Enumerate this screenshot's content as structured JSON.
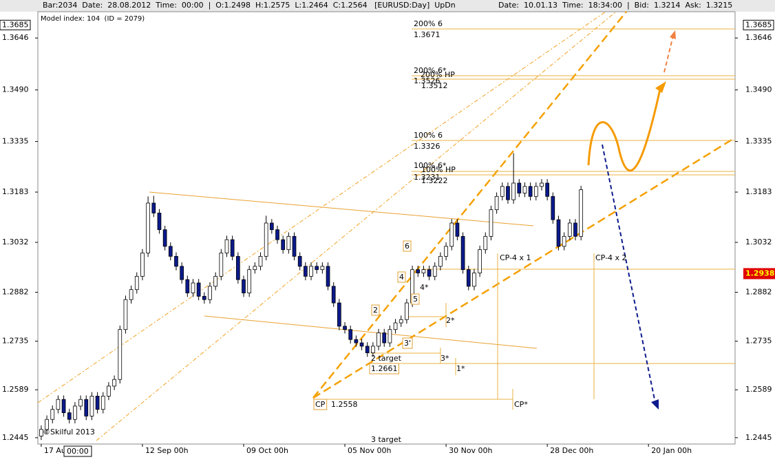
{
  "header": {
    "left": "Bar:2034  Date:  28.08.2012  Time:  00:00  |  O:1.2498  H:1.2575  L:1.2464  C:1.2564   [EURUSD:Day]  UpDn",
    "right": "Date:  10.01.13  Time:  18:34:00  |  Bid:  1.3214  Ask:  1.3215"
  },
  "model_index": "Model index: 104  (ID = 2079)",
  "copyright": "©Skilful 2013",
  "chart_data": {
    "type": "candlestick",
    "open": [
      1.245,
      1.247,
      1.25,
      1.253,
      1.256,
      1.252,
      1.25,
      1.254,
      1.256,
      1.251,
      1.257,
      1.253,
      1.257,
      1.26,
      1.262,
      1.277,
      1.286,
      1.289,
      1.293,
      1.3,
      1.315,
      1.312,
      1.307,
      1.302,
      1.299,
      1.296,
      1.292,
      1.288,
      1.291,
      1.287,
      1.286,
      1.29,
      1.293,
      1.3,
      1.304,
      1.299,
      1.292,
      1.288,
      1.295,
      1.296,
      1.299,
      1.309,
      1.307,
      1.304,
      1.301,
      1.305,
      1.299,
      1.296,
      1.293,
      1.296,
      1.295,
      1.296,
      1.29,
      1.285,
      1.278,
      1.277,
      1.274,
      1.273,
      1.272,
      1.27,
      1.272,
      1.276,
      1.273,
      1.277,
      1.279,
      1.28,
      1.285,
      1.295,
      1.294,
      1.295,
      1.293,
      1.296,
      1.299,
      1.302,
      1.309,
      1.305,
      1.295,
      1.29,
      1.294,
      1.301,
      1.305,
      1.313,
      1.317,
      1.32,
      1.316,
      1.321,
      1.318,
      1.32,
      1.317,
      1.32,
      1.321,
      1.317,
      1.31,
      1.302,
      1.305,
      1.309,
      1.305
    ],
    "high": [
      1.2482,
      1.2512,
      1.2542,
      1.2572,
      1.2572,
      1.2532,
      1.2552,
      1.2572,
      1.2572,
      1.2582,
      1.2582,
      1.2582,
      1.2612,
      1.2632,
      1.2782,
      1.2872,
      1.2902,
      1.2942,
      1.3012,
      1.317,
      1.3172,
      1.3132,
      1.3082,
      1.3032,
      1.3002,
      1.2972,
      1.2932,
      1.2922,
      1.2922,
      1.2882,
      1.2912,
      1.2942,
      1.3012,
      1.3052,
      1.3052,
      1.3002,
      1.2932,
      1.2962,
      1.2972,
      1.3002,
      1.3112,
      1.3102,
      1.3082,
      1.3052,
      1.3062,
      1.3062,
      1.3002,
      1.2972,
      1.2972,
      1.2972,
      1.2972,
      1.2972,
      1.2912,
      1.2862,
      1.2792,
      1.2782,
      1.2752,
      1.2742,
      1.2732,
      1.2732,
      1.2772,
      1.2772,
      1.2782,
      1.2802,
      1.2812,
      1.2862,
      1.2962,
      1.2962,
      1.2962,
      1.2962,
      1.2972,
      1.3002,
      1.3032,
      1.3102,
      1.3102,
      1.3062,
      1.2962,
      1.2952,
      1.3022,
      1.3062,
      1.3142,
      1.3182,
      1.3212,
      1.3212,
      1.33,
      1.3222,
      1.3212,
      1.3212,
      1.3212,
      1.3222,
      1.3222,
      1.3182,
      1.3112,
      1.3062,
      1.3102,
      1.3102,
      1.3202
    ],
    "low": [
      1.2438,
      1.2458,
      1.2488,
      1.2518,
      1.2508,
      1.2488,
      1.2488,
      1.2528,
      1.2498,
      1.2498,
      1.2518,
      1.2518,
      1.2558,
      1.2588,
      1.2608,
      1.2758,
      1.2848,
      1.2878,
      1.2918,
      1.2988,
      1.3108,
      1.3058,
      1.3008,
      1.2978,
      1.2948,
      1.2908,
      1.2868,
      1.2868,
      1.2858,
      1.2848,
      1.2848,
      1.2888,
      1.2918,
      1.2988,
      1.2978,
      1.2908,
      1.2868,
      1.2868,
      1.2938,
      1.2948,
      1.2978,
      1.3058,
      1.3028,
      1.2998,
      1.2998,
      1.2978,
      1.2948,
      1.2918,
      1.2918,
      1.2938,
      1.2938,
      1.2888,
      1.2838,
      1.2768,
      1.2758,
      1.2728,
      1.2718,
      1.2708,
      1.2688,
      1.2688,
      1.2708,
      1.2718,
      1.2718,
      1.2758,
      1.2778,
      1.2788,
      1.2838,
      1.2928,
      1.2928,
      1.2918,
      1.2918,
      1.2948,
      1.2978,
      1.3008,
      1.3038,
      1.2938,
      1.2888,
      1.2888,
      1.2928,
      1.2998,
      1.3038,
      1.3118,
      1.3158,
      1.3148,
      1.3148,
      1.3168,
      1.3168,
      1.3158,
      1.3158,
      1.3188,
      1.3158,
      1.3088,
      1.3008,
      1.3008,
      1.3038,
      1.3038,
      1.3038
    ],
    "close": [
      1.247,
      1.25,
      1.253,
      1.256,
      1.252,
      1.25,
      1.254,
      1.256,
      1.251,
      1.257,
      1.253,
      1.257,
      1.26,
      1.262,
      1.277,
      1.286,
      1.289,
      1.293,
      1.3,
      1.315,
      1.312,
      1.307,
      1.302,
      1.299,
      1.296,
      1.292,
      1.288,
      1.291,
      1.287,
      1.286,
      1.29,
      1.293,
      1.3,
      1.304,
      1.299,
      1.292,
      1.288,
      1.295,
      1.296,
      1.299,
      1.309,
      1.307,
      1.304,
      1.301,
      1.305,
      1.299,
      1.296,
      1.293,
      1.296,
      1.295,
      1.296,
      1.29,
      1.285,
      1.278,
      1.277,
      1.274,
      1.273,
      1.272,
      1.27,
      1.272,
      1.276,
      1.273,
      1.277,
      1.279,
      1.28,
      1.285,
      1.295,
      1.294,
      1.295,
      1.293,
      1.296,
      1.299,
      1.302,
      1.309,
      1.305,
      1.295,
      1.29,
      1.294,
      1.301,
      1.305,
      1.313,
      1.317,
      1.32,
      1.316,
      1.321,
      1.318,
      1.32,
      1.317,
      1.32,
      1.321,
      1.317,
      1.31,
      1.302,
      1.305,
      1.309,
      1.305,
      1.319
    ],
    "up_color": "#ffffff",
    "down_color": "#0b1a8c",
    "ylim": [
      1.2426,
      1.3725
    ],
    "yticks": [
      1.2445,
      1.2589,
      1.2735,
      1.2882,
      1.3032,
      1.3183,
      1.3335,
      {
        "value": 1.349,
        "label": "1.3490"
      },
      1.3646
    ],
    "xlim": [
      -0.6,
      123.4
    ],
    "xticks": [
      {
        "value": 0,
        "label": "17 Aug"
      },
      {
        "value": 18,
        "label": "12 Sep 00h"
      },
      {
        "value": 36,
        "label": "09 Oct 00h"
      },
      {
        "value": 54,
        "label": "05 Nov 00h"
      },
      {
        "value": 72,
        "label": "30 Nov 00h"
      },
      {
        "value": 90,
        "label": "28 Dec 00h"
      },
      {
        "value": 108,
        "label": "20 Jan 00h"
      }
    ],
    "price_high": 1.3685,
    "current_price": 1.2938,
    "cursor_time": "00:00"
  },
  "annotations": [
    {
      "text": "200% 6"
    },
    {
      "text": "1.3671"
    },
    {
      "text": "200% 6*"
    },
    {
      "text": "200% HP"
    },
    {
      "text": "1.3526"
    },
    {
      "text": "1.3512"
    },
    {
      "text": "100% 6"
    },
    {
      "text": "1.3326"
    },
    {
      "text": "100% 6*"
    },
    {
      "text": "100% HP"
    },
    {
      "text": "1.3231"
    },
    {
      "text": "1.3222"
    },
    {
      "text": "CP-4 x 1"
    },
    {
      "text": "CP-4 x 2"
    },
    {
      "text": "CP"
    },
    {
      "text": "1.2558"
    },
    {
      "text": "CP*"
    },
    {
      "text": "2 target"
    },
    {
      "text": "1.2661"
    },
    {
      "text": "3 target"
    },
    {
      "text": "1*"
    },
    {
      "text": "3*"
    },
    {
      "text": "2*"
    },
    {
      "text": "3'"
    },
    {
      "text": "4*"
    },
    {
      "text": "2"
    },
    {
      "text": "4"
    },
    {
      "text": "5"
    },
    {
      "text": "6"
    }
  ]
}
